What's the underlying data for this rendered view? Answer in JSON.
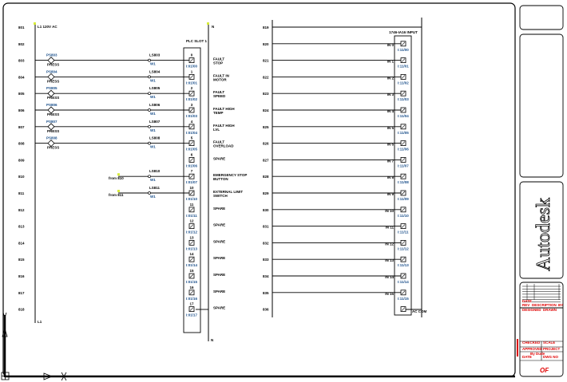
{
  "drawing": {
    "left_rail_top_label": "L1 120V AC",
    "left_rail_bottom_label": "L1",
    "right_rail_top_label": "N",
    "right_rail_bottom_label": "N",
    "wire_tag": "W1",
    "module_left_header": "PLC SLOT 1",
    "module_right_header": "1746-IA16 INPUT",
    "module_right_common": "AC COM",
    "left_rungs": [
      {
        "num": "801"
      },
      {
        "num": "802"
      },
      {
        "num": "803",
        "switch_tag": "PS803",
        "switch_type": "PRESS",
        "contact": "LS803",
        "wire": "W1",
        "terminal": "0",
        "address": "I:01/00",
        "desc": "FAULT\nSTOP"
      },
      {
        "num": "804",
        "switch_tag": "PS804",
        "switch_type": "PRESS",
        "contact": "LS804",
        "wire": "W1",
        "terminal": "1",
        "address": "I:01/01",
        "desc": "FAULT IN\nMOTOR"
      },
      {
        "num": "805",
        "switch_tag": "PS805",
        "switch_type": "PRESS",
        "contact": "LS805",
        "wire": "W1",
        "terminal": "2",
        "address": "I:01/02",
        "desc": "FAULT\nSPEED"
      },
      {
        "num": "806",
        "switch_tag": "PS806",
        "switch_type": "PRESS",
        "contact": "LS806",
        "wire": "W1",
        "terminal": "3",
        "address": "I:01/03",
        "desc": "FAULT HIGH\nTEMP"
      },
      {
        "num": "807",
        "switch_tag": "PS807",
        "switch_type": "PRESS",
        "contact": "LS807",
        "wire": "W1",
        "terminal": "4",
        "address": "I:01/04",
        "desc": "FAULT HIGH\nLVL"
      },
      {
        "num": "808",
        "switch_tag": "PS808",
        "switch_type": "PRESS",
        "contact": "LS808",
        "wire": "W1",
        "terminal": "5",
        "address": "I:01/05",
        "desc": "FAULT\nOVERLOAD"
      },
      {
        "num": "809",
        "terminal": "6",
        "address": "I:01/06",
        "desc": "SPARE"
      },
      {
        "num": "810",
        "source": "from 810",
        "contact": "LS810",
        "wire": "W1",
        "terminal": "7",
        "address": "I:01/07",
        "desc": "EMERGENCY STOP\nBUTTON"
      },
      {
        "num": "811",
        "source": "from 811",
        "contact": "LS811",
        "wire": "W1",
        "terminal": "10",
        "address": "I:01/10",
        "desc": "EXTERNAL LIMIT\nSWITCH"
      },
      {
        "num": "812",
        "terminal": "11",
        "address": "I:01/11",
        "desc": "SPARE"
      },
      {
        "num": "813",
        "terminal": "12",
        "address": "I:01/12",
        "desc": "SPARE"
      },
      {
        "num": "814",
        "terminal": "13",
        "address": "I:01/13",
        "desc": "SPARE"
      },
      {
        "num": "815",
        "terminal": "14",
        "address": "I:01/14",
        "desc": "SPARE"
      },
      {
        "num": "816",
        "terminal": "15",
        "address": "I:01/15",
        "desc": "SPARE"
      },
      {
        "num": "817",
        "terminal": "16",
        "address": "I:01/16",
        "desc": "SPARE"
      },
      {
        "num": "818",
        "terminal": "17",
        "address": "I:01/17",
        "desc": "SPARE"
      }
    ],
    "right_rungs": [
      {
        "num": "819"
      },
      {
        "num": "820",
        "input": "IN 0",
        "address": "I:11/00"
      },
      {
        "num": "821",
        "input": "IN 1",
        "address": "I:11/01"
      },
      {
        "num": "822",
        "input": "IN 2",
        "address": "I:11/02"
      },
      {
        "num": "823",
        "input": "IN 3",
        "address": "I:11/03"
      },
      {
        "num": "824",
        "input": "IN 4",
        "address": "I:11/04"
      },
      {
        "num": "825",
        "input": "IN 5",
        "address": "I:11/05"
      },
      {
        "num": "826",
        "input": "IN 6",
        "address": "I:11/06"
      },
      {
        "num": "827",
        "input": "IN 7",
        "address": "I:11/07"
      },
      {
        "num": "828",
        "input": "IN 8",
        "address": "I:11/08"
      },
      {
        "num": "829",
        "input": "IN 9",
        "address": "I:11/09"
      },
      {
        "num": "830",
        "input": "IN 10",
        "address": "I:11/10"
      },
      {
        "num": "831",
        "input": "IN 11",
        "address": "I:11/11"
      },
      {
        "num": "832",
        "input": "IN 12",
        "address": "I:11/12"
      },
      {
        "num": "833",
        "input": "IN 13",
        "address": "I:11/13"
      },
      {
        "num": "834",
        "input": "IN 14",
        "address": "I:11/14"
      },
      {
        "num": "835",
        "input": "IN 15",
        "address": "I:11/15"
      },
      {
        "num": "836"
      }
    ]
  },
  "title_block": {
    "logo": "Autodesk",
    "row_labels": [
      "REV",
      "DATE",
      "DESCRIPTION",
      "BY"
    ],
    "field_labels": [
      "DESIGNED",
      "DRAWN",
      "CHECKED",
      "SCALE",
      "APPROVED",
      "PROJECT",
      "DATE",
      "DWG NO"
    ],
    "drawn_value": "By Dude",
    "sheet": "OF"
  },
  "colors": {
    "line": "#000000",
    "address": "#1a4f8a",
    "wire_tag": "#d8ec3a",
    "title_text": "#e00000"
  }
}
